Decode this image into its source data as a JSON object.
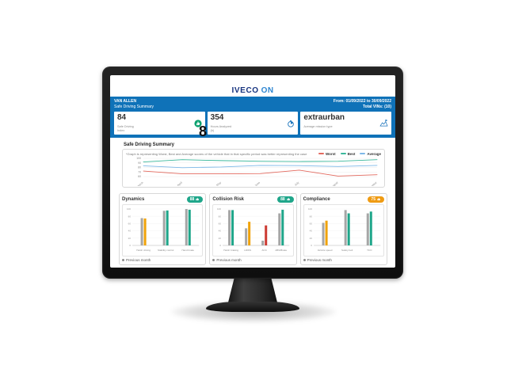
{
  "logo": {
    "iveco": "IVECO",
    "on": "ON"
  },
  "header": {
    "driver_name": "VAN ALLEN",
    "subtitle": "Safe Driving Summary",
    "date_range": "From: 01/09/2022 to 30/09/2022",
    "total_vins": "Total VINs: (10)"
  },
  "kpi_cards": [
    {
      "value": "84",
      "label": "Safe Driving",
      "sublabel": "Index",
      "icon": "thumbs-up-icon",
      "icon_color": "#0aa06e"
    },
    {
      "value": "354",
      "label": "Hours Analyzed",
      "sublabel": "(h)",
      "icon": "timer-icon",
      "icon_color": "#1c75bc"
    },
    {
      "value": "extraurban",
      "label": "Average mission type",
      "sublabel": "",
      "icon": "mission-type-icon",
      "icon_color": "#1c75bc"
    }
  ],
  "overlay_glyph": "8",
  "section": {
    "summary_title": "Safe Driving Summary",
    "note": "*Graph is representing Worst, Best and Average scores of the vehicle that in that specific period was better representing the case"
  },
  "chart_data": [
    {
      "type": "line",
      "title": "Safe Driving Summary",
      "x": [
        "March",
        "April",
        "May",
        "June",
        "July",
        "August",
        "September"
      ],
      "ylim": [
        60,
        100
      ],
      "yticks": [
        60,
        70,
        80,
        90,
        100
      ],
      "grid": true,
      "legend_position": "top-right",
      "series": [
        {
          "name": "Worst",
          "color": "#e36a5f",
          "values": [
            72,
            66,
            66,
            66.5,
            74,
            61,
            64
          ]
        },
        {
          "name": "Best",
          "color": "#3bb89b",
          "values": [
            92,
            97,
            95,
            93.5,
            93,
            93.5,
            97
          ]
        },
        {
          "name": "Average",
          "color": "#7db8e8",
          "values": [
            83.5,
            79.5,
            81,
            84.5,
            84,
            82,
            84.5
          ]
        }
      ]
    },
    {
      "type": "bar",
      "title": "Dynamics",
      "badge": {
        "value": "88",
        "color": "#1fa68a"
      },
      "ylim": [
        0,
        100
      ],
      "yticks": [
        0,
        20,
        40,
        60,
        80,
        100
      ],
      "categories": [
        "Harsh driving",
        "Stability control",
        "Hand brake"
      ],
      "series": [
        {
          "name": "Previous month",
          "color": "#a6a6a6",
          "values": [
            75,
            95,
            100
          ]
        },
        {
          "name": "Current month",
          "colors": [
            "#f0a30a",
            "#1fa68a",
            "#1fa68a"
          ],
          "values": [
            74,
            96,
            98
          ]
        }
      ],
      "legend_label": "Previous month"
    },
    {
      "type": "bar",
      "title": "Collision Risk",
      "badge": {
        "value": "88",
        "color": "#1fa68a"
      },
      "ylim": [
        0,
        100
      ],
      "yticks": [
        0,
        20,
        40,
        60,
        80,
        100
      ],
      "categories": [
        "Harsh braking",
        "LDWS",
        "ACC",
        "ABS/Brake"
      ],
      "series": [
        {
          "name": "Previous month",
          "color": "#a6a6a6",
          "values": [
            97,
            47,
            13,
            88
          ]
        },
        {
          "name": "Current month",
          "colors": [
            "#1fa68a",
            "#f0a30a",
            "#cc3b33",
            "#1fa68a"
          ],
          "values": [
            97,
            65,
            55,
            98
          ]
        }
      ],
      "legend_label": "Previous month"
    },
    {
      "type": "bar",
      "title": "Compliance",
      "badge": {
        "value": "75",
        "color": "#ef9b13"
      },
      "ylim": [
        0,
        100
      ],
      "yticks": [
        0,
        20,
        40,
        60,
        80,
        100
      ],
      "categories": [
        "Vehicle speed",
        "Safety belt",
        "TCO"
      ],
      "series": [
        {
          "name": "Previous month",
          "color": "#a6a6a6",
          "values": [
            62,
            97,
            88
          ]
        },
        {
          "name": "Current month",
          "colors": [
            "#f0a30a",
            "#1fa68a",
            "#1fa68a"
          ],
          "values": [
            68,
            88,
            93
          ]
        }
      ],
      "legend_label": "Previous month"
    }
  ],
  "colors": {
    "header_blue": "#0f72b8",
    "previous_month_gray": "#a6a6a6",
    "good_green": "#1fa68a",
    "warn_orange": "#f0a30a",
    "bad_red": "#cc3b33"
  }
}
